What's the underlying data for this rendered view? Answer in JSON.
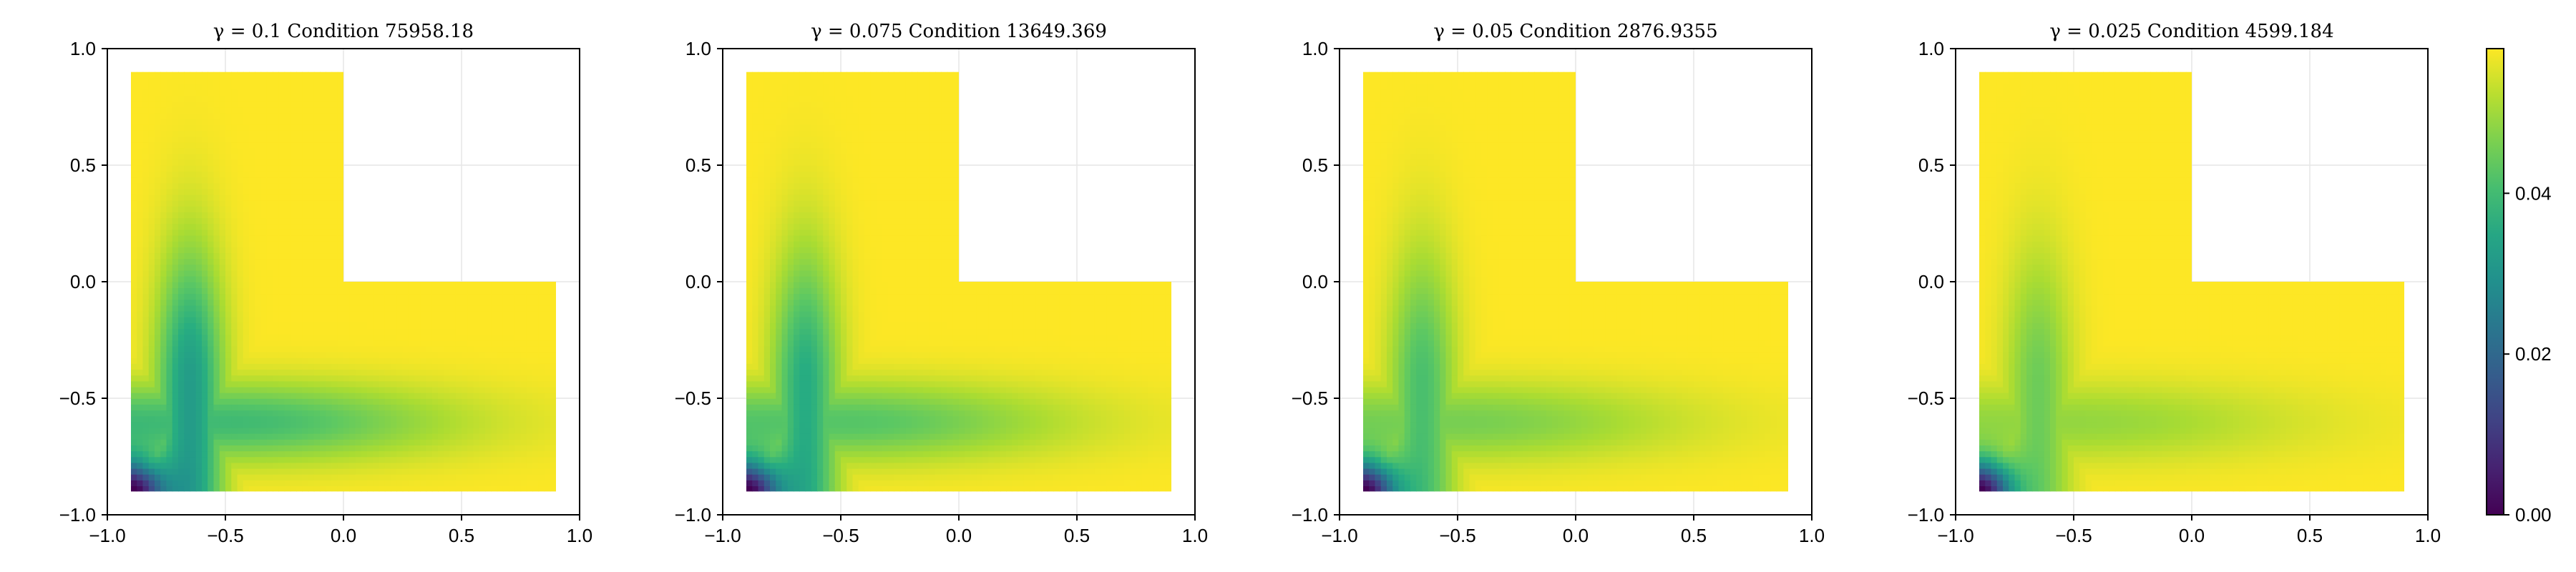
{
  "chart_data": [
    {
      "type": "heatmap",
      "title": "γ = 0.1  Condition 75958.18",
      "xlim": [
        -1.0,
        1.0
      ],
      "ylim": [
        -1.0,
        1.0
      ],
      "xticks": [
        "−1.0",
        "−0.5",
        "0.0",
        "0.5",
        "1.0"
      ],
      "yticks": [
        "−1.0",
        "−0.5",
        "0.0",
        "0.5",
        "1.0"
      ],
      "grid": true,
      "domain": "L-shaped region: [-0.9, 0.0]×[-0.9, 0.9] ∪ [0.0, 0.9]×[-0.9, 0.0]",
      "corner_low_value": 0.0,
      "bulk_value": 0.058,
      "ridge_min_value": 0.032
    },
    {
      "type": "heatmap",
      "title": "γ = 0.075  Condition 13649.369",
      "xlim": [
        -1.0,
        1.0
      ],
      "ylim": [
        -1.0,
        1.0
      ],
      "xticks": [
        "−1.0",
        "−0.5",
        "0.0",
        "0.5",
        "1.0"
      ],
      "yticks": [
        "−1.0",
        "−0.5",
        "0.0",
        "0.5",
        "1.0"
      ],
      "grid": true,
      "domain": "L-shaped region: [-0.9, 0.0]×[-0.9, 0.9] ∪ [0.0, 0.9]×[-0.9, 0.0]",
      "corner_low_value": 0.0,
      "bulk_value": 0.058,
      "ridge_min_value": 0.036
    },
    {
      "type": "heatmap",
      "title": "γ = 0.05  Condition 2876.9355",
      "xlim": [
        -1.0,
        1.0
      ],
      "ylim": [
        -1.0,
        1.0
      ],
      "xticks": [
        "−1.0",
        "−0.5",
        "0.0",
        "0.5",
        "1.0"
      ],
      "yticks": [
        "−1.0",
        "−0.5",
        "0.0",
        "0.5",
        "1.0"
      ],
      "grid": true,
      "domain": "L-shaped region: [-0.9, 0.0]×[-0.9, 0.9] ∪ [0.0, 0.9]×[-0.9, 0.0]",
      "corner_low_value": 0.0,
      "bulk_value": 0.058,
      "ridge_min_value": 0.041
    },
    {
      "type": "heatmap",
      "title": "γ = 0.025  Condition 4599.184",
      "xlim": [
        -1.0,
        1.0
      ],
      "ylim": [
        -1.0,
        1.0
      ],
      "xticks": [
        "−1.0",
        "−0.5",
        "0.0",
        "0.5",
        "1.0"
      ],
      "yticks": [
        "−1.0",
        "−0.5",
        "0.0",
        "0.5",
        "1.0"
      ],
      "grid": true,
      "domain": "L-shaped region: [-0.9, 0.0]×[-0.9, 0.9] ∪ [0.0, 0.9]×[-0.9, 0.0]",
      "corner_low_value": 0.0,
      "bulk_value": 0.058,
      "ridge_min_value": 0.045
    }
  ],
  "colorbar": {
    "colormap": "viridis",
    "range": [
      0.0,
      0.058
    ],
    "ticks": [
      {
        "value": 0.0,
        "label": "0.00"
      },
      {
        "value": 0.02,
        "label": "0.02"
      },
      {
        "value": 0.04,
        "label": "0.04"
      }
    ]
  }
}
